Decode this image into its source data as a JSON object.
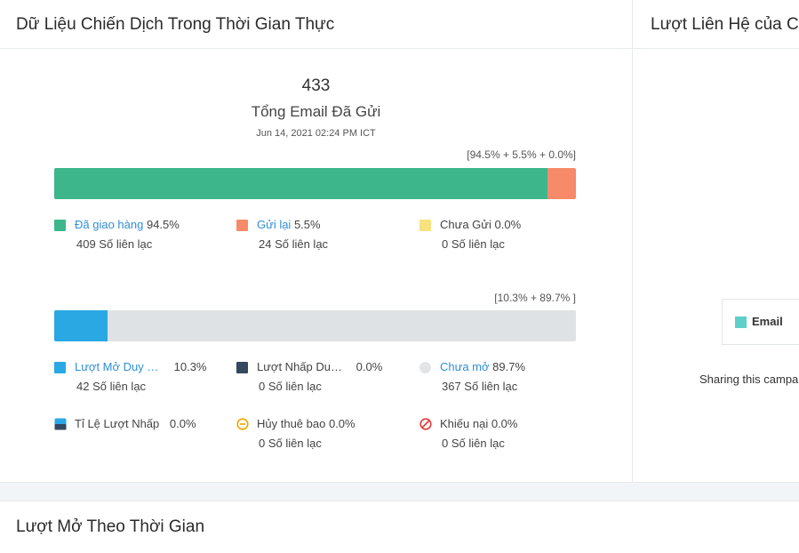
{
  "left_panel": {
    "title": "Dữ Liệu Chiến Dịch Trong Thời Gian Thực",
    "total": "433",
    "total_label": "Tổng Email Đã Gửi",
    "date": "Jun 14, 2021 02:24 PM ICT",
    "delivery": {
      "bar_label": "[94.5% + 5.5% + 0.0%]",
      "segments": [
        {
          "fraction": 0.945,
          "color": "#3db68b"
        },
        {
          "fraction": 0.055,
          "color": "#f78a68"
        },
        {
          "fraction": 0.0,
          "color": "#f6e27f"
        }
      ],
      "legend": [
        {
          "label": "Đã giao hàng",
          "pct": "94.5%",
          "count": "409 Số liên lạc",
          "color": "#3db68b"
        },
        {
          "label": "Gửi lại",
          "pct": "5.5%",
          "count": "24 Số liên lạc",
          "color": "#f78a68"
        },
        {
          "label": "Chưa Gửi",
          "pct": "0.0%",
          "count": "0 Số liên lạc",
          "color": "#f6e27f"
        }
      ]
    },
    "opens": {
      "bar_label": "[10.3% + 89.7% ]",
      "segments": [
        {
          "fraction": 0.103,
          "color": "#29a8e3"
        },
        {
          "fraction": 0.897,
          "color": "#dfe2e4"
        }
      ],
      "legend": [
        {
          "label": "Lượt Mở Duy Nhất",
          "pct": "10.3%",
          "count": "42 Số liên lạc",
          "color": "#29a8e3"
        },
        {
          "label": "Lượt Nhấp Duy Nhất",
          "pct": "0.0%",
          "count": "0 Số liên lạc",
          "color": "#34495e"
        },
        {
          "label": "Chưa mở",
          "pct": "89.7%",
          "count": "367 Số liên lạc",
          "color": "#e2e4e6"
        },
        {
          "label": "Tỉ Lệ Lượt Nhấp",
          "pct": "0.0%",
          "count": "",
          "color": "#29a8e3"
        },
        {
          "label": "Hủy thuê bao",
          "pct": "0.0%",
          "count": "0 Số liên lạc",
          "color": "#f0a500"
        },
        {
          "label": "Khiếu nại",
          "pct": "0.0%",
          "count": "0 Số liên lạc",
          "color": "#e53935"
        }
      ]
    }
  },
  "right_panel": {
    "title": "Lượt Liên Hệ của C",
    "legend_label": "Email",
    "legend_color": "#5ecfc9",
    "sharing_text": "Sharing this campa"
  },
  "bottom_panel": {
    "title": "Lượt Mở Theo Thời Gian"
  }
}
